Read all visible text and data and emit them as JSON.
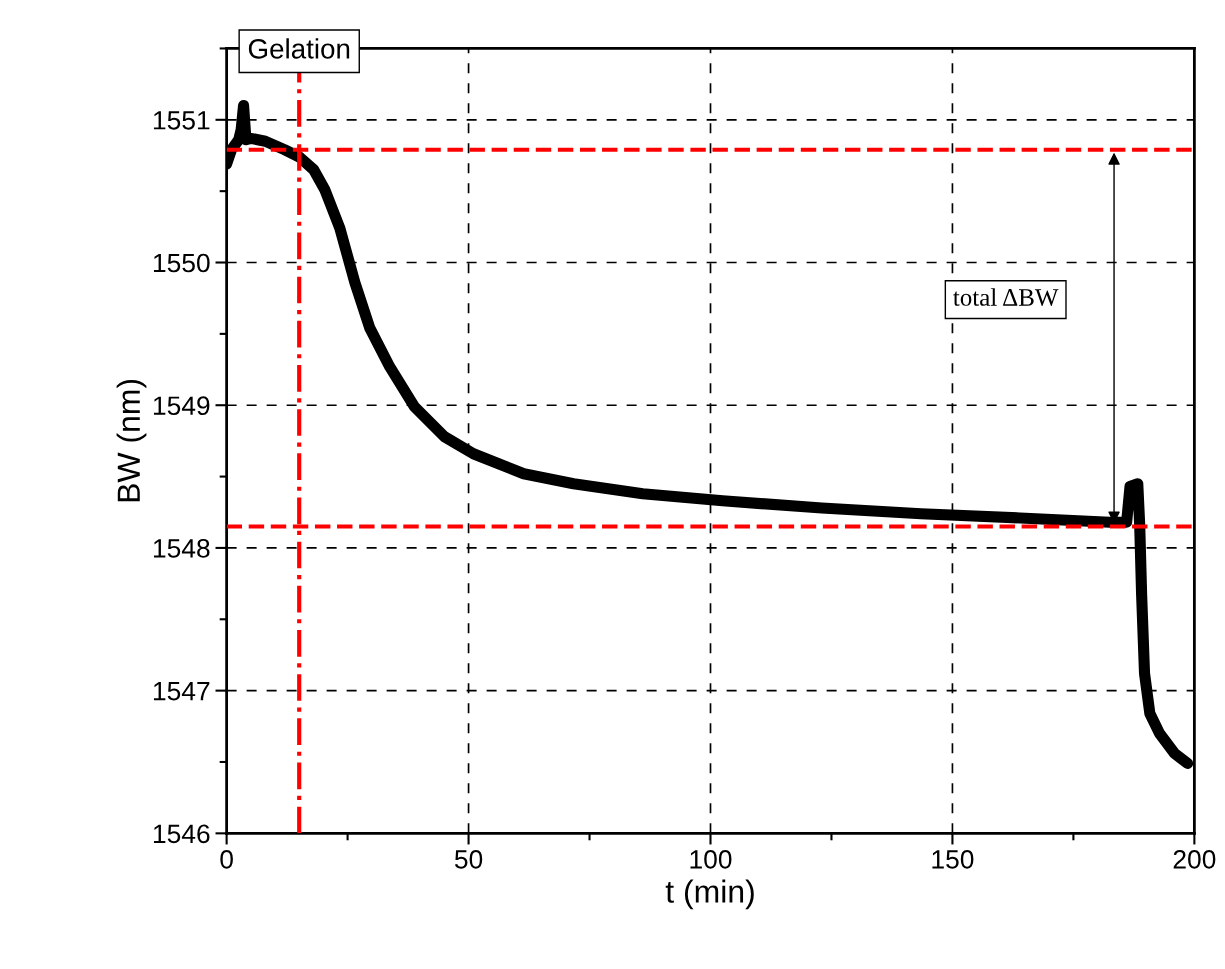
{
  "chart_data": {
    "type": "line",
    "xlabel": "t (min)",
    "ylabel": "BW (nm)",
    "x": [
      0,
      1,
      2.5,
      3,
      3.5,
      4,
      5,
      8,
      12,
      15,
      18,
      20.3,
      23.4,
      26.5,
      29.6,
      33.7,
      38.8,
      45,
      51,
      61.4,
      71.7,
      86,
      102.5,
      123,
      143.5,
      164,
      182.5,
      186,
      186.7,
      188.3,
      188.7,
      189.1,
      189.7,
      190.8,
      192.8,
      195.9,
      198.6
    ],
    "series": [
      {
        "color": "#000000",
        "values": [
          1550.69,
          1550.79,
          1550.86,
          1550.93,
          1551.1,
          1550.86,
          1550.87,
          1550.85,
          1550.79,
          1550.74,
          1550.65,
          1550.51,
          1550.24,
          1549.86,
          1549.54,
          1549.27,
          1548.99,
          1548.78,
          1548.66,
          1548.52,
          1548.45,
          1548.38,
          1548.33,
          1548.28,
          1548.24,
          1548.21,
          1548.18,
          1548.18,
          1548.43,
          1548.45,
          1548.16,
          1547.67,
          1547.12,
          1546.84,
          1546.7,
          1546.56,
          1546.49
        ]
      }
    ],
    "xlim": [
      0,
      200
    ],
    "xticks": [
      0,
      50,
      100,
      150,
      200
    ],
    "ylim": [
      1546,
      1551.5
    ],
    "yticks": [
      1546,
      1547,
      1548,
      1549,
      1550,
      1551
    ],
    "grid": true,
    "line_style": "solid",
    "marker": "none",
    "ref_lines": [
      {
        "axis": "x",
        "value": 15,
        "label": "Gelation",
        "color": "#ff0000",
        "line_style": "dashdot"
      },
      {
        "axis": "y",
        "value": 1550.79,
        "color": "#ff0000",
        "line_style": "dashed"
      },
      {
        "axis": "y",
        "value": 1548.15,
        "color": "#ff0000",
        "line_style": "dashed"
      }
    ],
    "annotations": [
      "total ΔBW"
    ]
  }
}
